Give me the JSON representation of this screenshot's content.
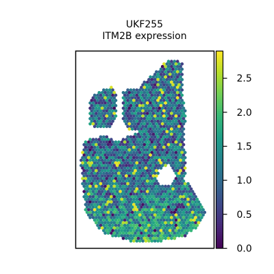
{
  "chart_data": {
    "type": "scatter",
    "title": "UKF255",
    "subtitle": "ITM2B expression",
    "xlabel": "",
    "ylabel": "",
    "grid": false,
    "colormap": "viridis",
    "colorbar": {
      "range": [
        0.0,
        2.9
      ],
      "ticks": [
        0.0,
        0.5,
        1.0,
        1.5,
        2.0,
        2.5
      ],
      "tick_labels": [
        "0.0",
        "0.5",
        "1.0",
        "1.5",
        "2.0",
        "2.5"
      ]
    },
    "viridis_stops": [
      "#440154",
      "#482878",
      "#3e4989",
      "#31688e",
      "#26828e",
      "#1f9e89",
      "#35b779",
      "#6ece58",
      "#b5de2b",
      "#fde725"
    ]
  }
}
